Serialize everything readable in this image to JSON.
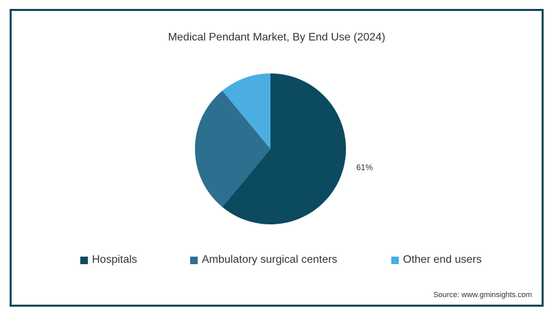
{
  "chart_data": {
    "type": "pie",
    "title": "Medical Pendant Market, By End Use (2024)",
    "slices": [
      {
        "label": "Hospitals",
        "value": 61,
        "color": "#0b4a5f",
        "data_label": "61%"
      },
      {
        "label": "Ambulatory surgical centers",
        "value": 28,
        "color": "#2d6f8f",
        "data_label": ""
      },
      {
        "label": "Other end users",
        "value": 11,
        "color": "#4aaee3",
        "data_label": ""
      }
    ],
    "legend_position": "bottom"
  },
  "source": "Source: www.gminsights.com"
}
